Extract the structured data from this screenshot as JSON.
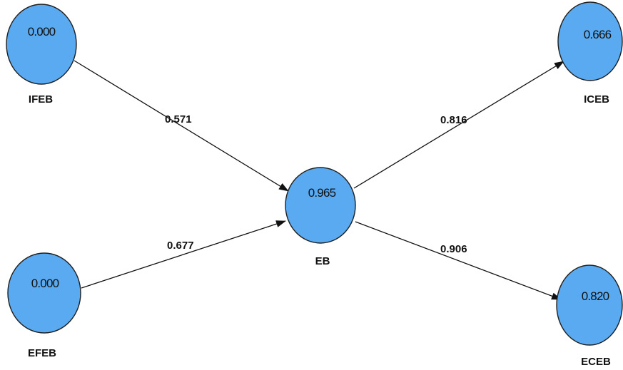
{
  "colors": {
    "node_fill": "#5aaaf2",
    "node_stroke": "#1f1f1f",
    "edge": "#111111",
    "text": "#111111"
  },
  "nodes": {
    "ifeb": {
      "label": "IFEB",
      "value": "0.000"
    },
    "efeb": {
      "label": "EFEB",
      "value": "0.000"
    },
    "eb": {
      "label": "EB",
      "value": "0.965"
    },
    "iceb": {
      "label": "ICEB",
      "value": "0.666"
    },
    "eceb": {
      "label": "ECEB",
      "value": "0.820"
    }
  },
  "edges": {
    "ifeb_eb": {
      "from": "IFEB",
      "to": "EB",
      "coefficient": "0.571"
    },
    "efeb_eb": {
      "from": "EFEB",
      "to": "EB",
      "coefficient": "0.677"
    },
    "eb_iceb": {
      "from": "EB",
      "to": "ICEB",
      "coefficient": "0.816"
    },
    "eb_eceb": {
      "from": "EB",
      "to": "ECEB",
      "coefficient": "0.906"
    }
  }
}
